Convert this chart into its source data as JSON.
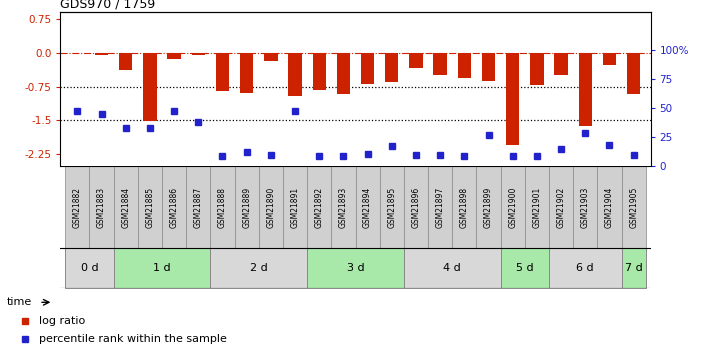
{
  "title": "GDS970 / 1759",
  "samples": [
    "GSM21882",
    "GSM21883",
    "GSM21884",
    "GSM21885",
    "GSM21886",
    "GSM21887",
    "GSM21888",
    "GSM21889",
    "GSM21890",
    "GSM21891",
    "GSM21892",
    "GSM21893",
    "GSM21894",
    "GSM21895",
    "GSM21896",
    "GSM21897",
    "GSM21898",
    "GSM21899",
    "GSM21900",
    "GSM21901",
    "GSM21902",
    "GSM21903",
    "GSM21904",
    "GSM21905"
  ],
  "log_ratio": [
    0.0,
    -0.05,
    -0.38,
    -1.52,
    -0.13,
    -0.04,
    -0.85,
    -0.9,
    -0.18,
    -0.95,
    -0.83,
    -0.92,
    -0.7,
    -0.65,
    -0.33,
    -0.5,
    -0.55,
    -0.62,
    -2.05,
    -0.72,
    -0.5,
    -1.62,
    -0.27,
    -0.92
  ],
  "percentile": [
    47,
    45,
    33,
    33,
    47,
    38,
    8,
    12,
    9,
    47,
    8,
    8,
    10,
    17,
    9,
    9,
    8,
    27,
    8,
    8,
    14,
    28,
    18,
    9
  ],
  "groups": [
    {
      "label": "0 d",
      "indices": [
        0,
        1
      ],
      "color": "#d8d8d8"
    },
    {
      "label": "1 d",
      "indices": [
        2,
        3,
        4,
        5
      ],
      "color": "#a8e8a8"
    },
    {
      "label": "2 d",
      "indices": [
        6,
        7,
        8,
        9
      ],
      "color": "#d8d8d8"
    },
    {
      "label": "3 d",
      "indices": [
        10,
        11,
        12,
        13
      ],
      "color": "#a8e8a8"
    },
    {
      "label": "4 d",
      "indices": [
        14,
        15,
        16,
        17
      ],
      "color": "#d8d8d8"
    },
    {
      "label": "5 d",
      "indices": [
        18,
        19
      ],
      "color": "#a8e8a8"
    },
    {
      "label": "6 d",
      "indices": [
        20,
        21,
        22
      ],
      "color": "#d8d8d8"
    },
    {
      "label": "7 d",
      "indices": [
        23
      ],
      "color": "#a8e8a8"
    }
  ],
  "bar_color": "#cc2200",
  "dot_color": "#2222cc",
  "ylim_left": [
    -2.5,
    0.9
  ],
  "yticks_left": [
    0.75,
    0.0,
    -0.75,
    -1.5,
    -2.25
  ],
  "ylim_right": [
    0.0,
    133.33
  ],
  "yticks_right_pos": [
    0,
    25,
    50,
    75,
    100
  ],
  "yticks_right_labels": [
    "0",
    "25",
    "50",
    "75",
    "100%"
  ],
  "hline_dotted": [
    -0.75,
    -1.5
  ],
  "bar_width": 0.55,
  "legend_labels": [
    "log ratio",
    "percentile rank within the sample"
  ],
  "legend_colors": [
    "#cc2200",
    "#2222cc"
  ],
  "time_label": "time",
  "cell_color": "#d0d0d0",
  "cell_edge_color": "#888888"
}
